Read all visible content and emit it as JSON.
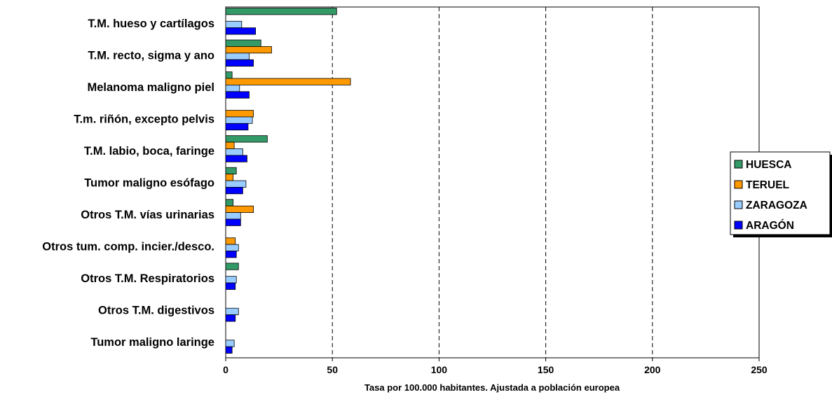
{
  "chart_data": {
    "type": "bar",
    "orientation": "horizontal",
    "categories": [
      "T.M.  hueso y cartílagos",
      "T.M. recto, sigma y ano",
      "Melanoma maligno piel",
      "T.m. riñón, excepto pelvis",
      "T.M. labio, boca, faringe",
      "Tumor maligno esófago",
      "Otros T.M.  vías urinarias",
      "Otros tum. comp. incier./desco.",
      "Otros T.M. Respiratorios",
      "Otros T.M. digestivos",
      "Tumor maligno laringe"
    ],
    "series": [
      {
        "name": "HUESCA",
        "color": "#339966",
        "values": [
          52,
          16.5,
          3,
          0,
          19.5,
          5,
          3.5,
          0,
          6,
          0,
          0
        ]
      },
      {
        "name": "TERUEL",
        "color": "#FF9900",
        "values": [
          0,
          21.5,
          58.5,
          13,
          4,
          3.5,
          13,
          4.5,
          0,
          0,
          0
        ]
      },
      {
        "name": "ZARAGOZA",
        "color": "#99CCFF",
        "values": [
          7.5,
          11,
          6.5,
          12.5,
          8,
          9.5,
          7,
          6,
          5,
          6,
          4
        ]
      },
      {
        "name": "ARAGÓN",
        "color": "#0000FF",
        "values": [
          14,
          13,
          11,
          10.5,
          10,
          8,
          7,
          5,
          4.5,
          4.5,
          3
        ]
      }
    ],
    "xlim": [
      0,
      250
    ],
    "xticks": [
      "0",
      "50",
      "100",
      "150",
      "200",
      "250"
    ],
    "xlabel": "Tasa por 100.000 habitantes. Ajustada a población europea",
    "grid": "vertical dashed",
    "legend_position": "right"
  }
}
